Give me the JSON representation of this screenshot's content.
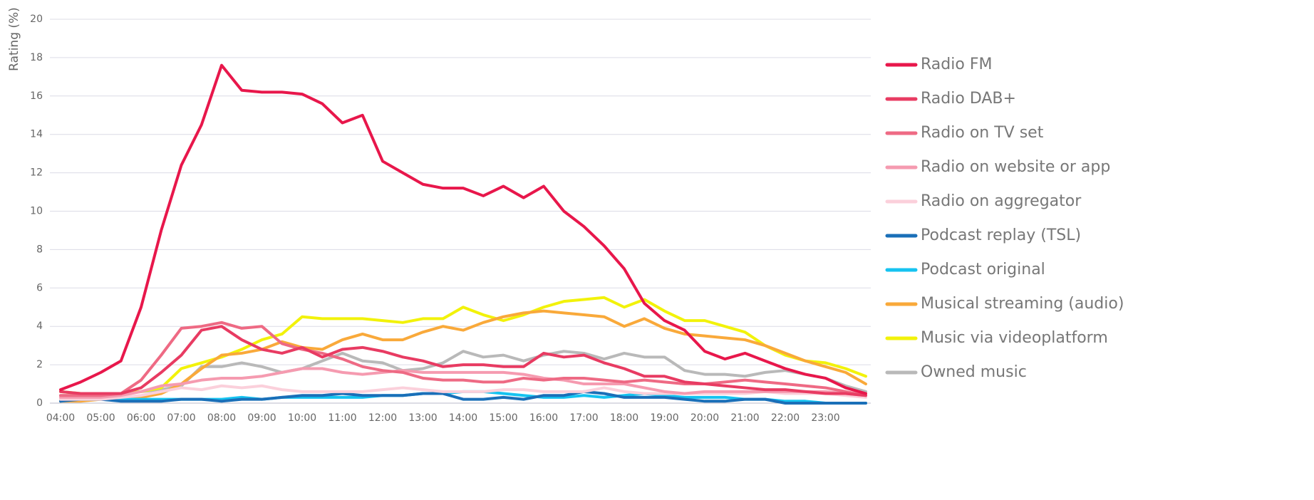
{
  "chart_data": {
    "type": "line",
    "y_label": "Rating (%)",
    "categories": [
      "04:00",
      null,
      "05:00",
      null,
      "06:00",
      null,
      "07:00",
      null,
      "08:00",
      null,
      "09:00",
      null,
      "10:00",
      null,
      "11:00",
      null,
      "12:00",
      null,
      "13:00",
      null,
      "14:00",
      null,
      "15:00",
      null,
      "16:00",
      null,
      "17:00",
      null,
      "18:00",
      null,
      "19:00",
      null,
      "20:00",
      null,
      "21:00",
      null,
      "22:00",
      null,
      "23:00",
      null,
      null
    ],
    "ylim": [
      0,
      20
    ],
    "yticks": [
      0,
      2,
      4,
      6,
      8,
      10,
      12,
      14,
      16,
      18,
      20
    ],
    "grid": true,
    "legend": "right",
    "series": [
      {
        "name": "Radio FM",
        "color": "#e8174b",
        "values": [
          0.7,
          1.1,
          1.6,
          2.2,
          5.0,
          9.0,
          12.4,
          14.5,
          17.6,
          16.3,
          16.2,
          16.2,
          16.1,
          15.6,
          14.6,
          15.0,
          12.6,
          12.0,
          11.4,
          11.2,
          11.2,
          10.8,
          11.3,
          10.7,
          11.3,
          10.0,
          9.2,
          8.2,
          7.0,
          5.2,
          4.3,
          3.8,
          2.7,
          2.3,
          2.6,
          2.2,
          1.8,
          1.5,
          1.3,
          0.8,
          0.5
        ]
      },
      {
        "name": "Radio DAB+",
        "color": "#e83b62",
        "values": [
          0.6,
          0.5,
          0.5,
          0.5,
          0.8,
          1.6,
          2.5,
          3.8,
          4.0,
          3.3,
          2.8,
          2.6,
          2.9,
          2.4,
          2.8,
          2.9,
          2.7,
          2.4,
          2.2,
          1.9,
          2.0,
          2.0,
          1.9,
          1.9,
          2.6,
          2.4,
          2.5,
          2.1,
          1.8,
          1.4,
          1.4,
          1.1,
          1.0,
          0.9,
          0.8,
          0.7,
          0.7,
          0.6,
          0.5,
          0.5,
          0.4
        ]
      },
      {
        "name": "Radio on TV set",
        "color": "#ee6a84",
        "values": [
          0.4,
          0.4,
          0.4,
          0.5,
          1.2,
          2.5,
          3.9,
          4.0,
          4.2,
          3.9,
          4.0,
          3.1,
          2.8,
          2.6,
          2.3,
          1.9,
          1.7,
          1.6,
          1.3,
          1.2,
          1.2,
          1.1,
          1.1,
          1.3,
          1.2,
          1.3,
          1.3,
          1.2,
          1.1,
          1.2,
          1.1,
          1.0,
          1.0,
          1.1,
          1.2,
          1.1,
          1.0,
          0.9,
          0.8,
          0.6,
          0.4
        ]
      },
      {
        "name": "Radio on website or app",
        "color": "#f59bb0",
        "values": [
          0.3,
          0.3,
          0.3,
          0.4,
          0.6,
          0.9,
          1.0,
          1.2,
          1.3,
          1.3,
          1.4,
          1.6,
          1.8,
          1.8,
          1.6,
          1.5,
          1.6,
          1.7,
          1.6,
          1.6,
          1.6,
          1.6,
          1.6,
          1.5,
          1.3,
          1.2,
          1.0,
          1.0,
          1.0,
          0.8,
          0.6,
          0.5,
          0.6,
          0.6,
          0.6,
          0.6,
          0.6,
          0.6,
          0.6,
          0.5,
          0.4
        ]
      },
      {
        "name": "Radio on aggregator",
        "color": "#fbd0db",
        "values": [
          0.2,
          0.2,
          0.2,
          0.3,
          0.4,
          0.6,
          0.8,
          0.7,
          0.9,
          0.8,
          0.9,
          0.7,
          0.6,
          0.6,
          0.6,
          0.6,
          0.7,
          0.8,
          0.7,
          0.6,
          0.6,
          0.6,
          0.7,
          0.7,
          0.6,
          0.6,
          0.6,
          0.8,
          0.6,
          0.5,
          0.5,
          0.5,
          0.5,
          0.5,
          0.5,
          0.6,
          0.5,
          0.5,
          0.5,
          0.4,
          0.3
        ]
      },
      {
        "name": "Podcast replay (TSL)",
        "color": "#1a6fb8",
        "values": [
          0.1,
          0.2,
          0.2,
          0.1,
          0.1,
          0.1,
          0.2,
          0.2,
          0.1,
          0.2,
          0.2,
          0.3,
          0.4,
          0.4,
          0.5,
          0.4,
          0.4,
          0.4,
          0.5,
          0.5,
          0.2,
          0.2,
          0.3,
          0.2,
          0.4,
          0.4,
          0.6,
          0.5,
          0.3,
          0.3,
          0.3,
          0.2,
          0.1,
          0.1,
          0.2,
          0.2,
          0.0,
          0.0,
          0.0,
          0.0,
          0.0
        ]
      },
      {
        "name": "Podcast original",
        "color": "#16c3f0",
        "values": [
          0.2,
          0.2,
          0.2,
          0.2,
          0.2,
          0.2,
          0.2,
          0.2,
          0.2,
          0.3,
          0.2,
          0.3,
          0.3,
          0.3,
          0.3,
          0.3,
          0.4,
          0.4,
          0.5,
          0.5,
          0.6,
          0.6,
          0.5,
          0.4,
          0.3,
          0.3,
          0.4,
          0.3,
          0.4,
          0.5,
          0.4,
          0.3,
          0.3,
          0.3,
          0.2,
          0.2,
          0.1,
          0.1,
          0.0,
          0.0,
          0.0
        ]
      },
      {
        "name": "Musical streaming (audio)",
        "color": "#f9a93a",
        "values": [
          0.1,
          0.1,
          0.2,
          0.2,
          0.3,
          0.5,
          1.0,
          1.8,
          2.5,
          2.6,
          2.8,
          3.2,
          2.9,
          2.8,
          3.3,
          3.6,
          3.3,
          3.3,
          3.7,
          4.0,
          3.8,
          4.2,
          4.5,
          4.7,
          4.8,
          4.7,
          4.6,
          4.5,
          4.0,
          4.4,
          3.9,
          3.6,
          3.5,
          3.4,
          3.3,
          3.0,
          2.6,
          2.2,
          1.9,
          1.6,
          1.0
        ]
      },
      {
        "name": "Music via videoplatform",
        "color": "#f2f20a",
        "values": [
          0.6,
          0.5,
          0.5,
          0.5,
          0.6,
          0.8,
          1.8,
          2.1,
          2.4,
          2.8,
          3.3,
          3.6,
          4.5,
          4.4,
          4.4,
          4.4,
          4.3,
          4.2,
          4.4,
          4.4,
          5.0,
          4.6,
          4.3,
          4.6,
          5.0,
          5.3,
          5.4,
          5.5,
          5.0,
          5.4,
          4.8,
          4.3,
          4.3,
          4.0,
          3.7,
          3.0,
          2.5,
          2.2,
          2.1,
          1.8,
          1.4
        ]
      },
      {
        "name": "Owned music",
        "color": "#b9b9b9",
        "values": [
          0.4,
          0.4,
          0.4,
          0.5,
          0.6,
          0.7,
          0.9,
          1.9,
          1.9,
          2.1,
          1.9,
          1.6,
          1.8,
          2.2,
          2.6,
          2.2,
          2.1,
          1.7,
          1.8,
          2.1,
          2.7,
          2.4,
          2.5,
          2.2,
          2.5,
          2.7,
          2.6,
          2.3,
          2.6,
          2.4,
          2.4,
          1.7,
          1.5,
          1.5,
          1.4,
          1.6,
          1.7,
          1.5,
          1.3,
          0.9,
          0.6
        ]
      }
    ]
  }
}
